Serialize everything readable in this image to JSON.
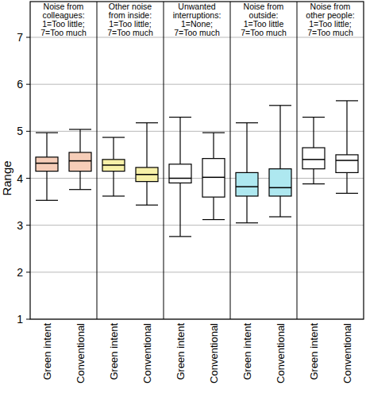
{
  "chart_data": {
    "type": "box",
    "ylabel": "Range",
    "ylim": [
      1,
      7
    ],
    "yticks": [
      1,
      2,
      3,
      4,
      5,
      6,
      7
    ],
    "grid": true,
    "panels": [
      {
        "title": [
          "Noise from",
          "colleagues:",
          "1=Too little;",
          "7=Too much"
        ],
        "color": "#f6cdb8",
        "categories": [
          "Green intent",
          "Conventional"
        ],
        "boxes": [
          {
            "min": 3.53,
            "q1": 4.15,
            "median": 4.32,
            "q3": 4.45,
            "max": 4.97
          },
          {
            "min": 3.76,
            "q1": 4.15,
            "median": 4.37,
            "q3": 4.55,
            "max": 5.04
          }
        ]
      },
      {
        "title": [
          "Other noise",
          "from inside:",
          "1=Too little;",
          "7=Too much"
        ],
        "color": "#f7f0a8",
        "categories": [
          "Green intent",
          "Conventional"
        ],
        "boxes": [
          {
            "min": 3.62,
            "q1": 4.15,
            "median": 4.28,
            "q3": 4.4,
            "max": 4.87
          },
          {
            "min": 3.43,
            "q1": 3.93,
            "median": 4.08,
            "q3": 4.23,
            "max": 5.18
          }
        ]
      },
      {
        "title": [
          "Unwanted",
          "interruptions:",
          "1=None;",
          "7=Too much"
        ],
        "color": "#ffffff",
        "categories": [
          "Green intent",
          "Conventional"
        ],
        "boxes": [
          {
            "min": 2.76,
            "q1": 3.9,
            "median": 4.0,
            "q3": 4.3,
            "max": 5.3
          },
          {
            "min": 3.12,
            "q1": 3.6,
            "median": 4.02,
            "q3": 4.42,
            "max": 4.97
          }
        ]
      },
      {
        "title": [
          "Noise from",
          "outside:",
          "1=Too little",
          "7=Too much"
        ],
        "color": "#aee8f0",
        "categories": [
          "Green intent",
          "Conventional"
        ],
        "boxes": [
          {
            "min": 3.05,
            "q1": 3.62,
            "median": 3.82,
            "q3": 4.12,
            "max": 5.18
          },
          {
            "min": 3.18,
            "q1": 3.62,
            "median": 3.8,
            "q3": 4.2,
            "max": 5.55
          }
        ]
      },
      {
        "title": [
          "Noise from",
          "other people:",
          "1=Too little;",
          "7=Too much"
        ],
        "color": "#ffffff",
        "categories": [
          "Green intent",
          "Conventional"
        ],
        "boxes": [
          {
            "min": 3.88,
            "q1": 4.2,
            "median": 4.4,
            "q3": 4.65,
            "max": 5.3
          },
          {
            "min": 3.68,
            "q1": 4.12,
            "median": 4.38,
            "q3": 4.5,
            "max": 5.65
          }
        ]
      }
    ]
  }
}
